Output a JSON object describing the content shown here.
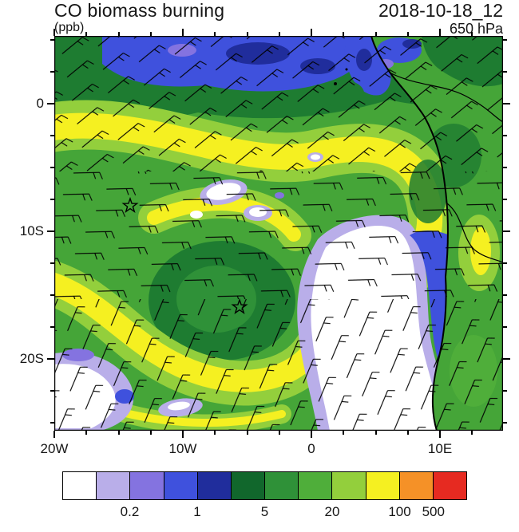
{
  "header": {
    "title": "CO biomass burning",
    "units_label": "(ppb)",
    "datetime": "2018-10-18_12",
    "level": "650 hPa"
  },
  "axes": {
    "y_ticks": [
      {
        "label": "0",
        "pct": 17.2
      },
      {
        "label": "10S",
        "pct": 49.5
      },
      {
        "label": "20S",
        "pct": 81.8
      }
    ],
    "y_minor_pct": [
      1.05,
      9.13,
      25.28,
      33.35,
      41.43,
      57.58,
      65.65,
      73.73,
      89.88,
      97.95
    ],
    "x_ticks": [
      {
        "label": "20W",
        "pct": 0
      },
      {
        "label": "10W",
        "pct": 28.65
      },
      {
        "label": "0",
        "pct": 57.3
      },
      {
        "label": "10E",
        "pct": 85.95
      }
    ],
    "x_minor_pct": [
      7.16,
      14.33,
      21.49,
      35.81,
      42.98,
      50.14,
      64.46,
      71.63,
      78.79,
      93.11
    ]
  },
  "colorbar": {
    "colors": [
      "#ffffff",
      "#b9aee9",
      "#8473e0",
      "#3f51dd",
      "#202d9c",
      "#11672c",
      "#2f9138",
      "#4fae3a",
      "#93cf3c",
      "#f5f021",
      "#f59127",
      "#e62a21"
    ],
    "labels": [
      {
        "text": "0.2",
        "boundary": 2
      },
      {
        "text": "1",
        "boundary": 4
      },
      {
        "text": "5",
        "boundary": 6
      },
      {
        "text": "20",
        "boundary": 8
      },
      {
        "text": "100",
        "boundary": 10
      },
      {
        "text": "500",
        "boundary": 11
      }
    ]
  },
  "chart_data": {
    "type": "heatmap",
    "subtype": "filled-contour map with wind barbs, coastline and country borders",
    "title": "CO biomass burning",
    "units": "ppb",
    "level": "650 hPa",
    "valid_time": "2018-10-18_12",
    "lon_range_deg": [
      -20,
      15
    ],
    "lat_range_deg": [
      -25.7,
      5.3
    ],
    "x_tick_labels": [
      "20W",
      "10W",
      "0",
      "10E"
    ],
    "y_tick_labels": [
      "0",
      "10S",
      "20S"
    ],
    "labeled_contour_levels_ppb": [
      0.2,
      1,
      5,
      20,
      100,
      500
    ],
    "estimated_contour_levels_ppb": [
      0.1,
      0.2,
      0.5,
      1,
      2,
      5,
      10,
      20,
      50,
      100,
      500
    ],
    "palette": [
      "#ffffff",
      "#b9aee9",
      "#8473e0",
      "#3f51dd",
      "#202d9c",
      "#11672c",
      "#2f9138",
      "#4fae3a",
      "#93cf3c",
      "#f5f021",
      "#f59127",
      "#e62a21"
    ],
    "features": [
      {
        "name": "high-CO spiral plume",
        "value_ppb": "100-500",
        "desc": "yellow band of biomass-burning CO spiraling anticyclonically from the African coast westward over the South Atlantic between roughly 2S and 22S"
      },
      {
        "name": "gyre core",
        "value_ppb": "20-100",
        "desc": "green vortex center near 6W, 16S marked with a star"
      },
      {
        "name": "clean-air slot",
        "value_ppb": "<0.2-2",
        "desc": "white wedge of very low CO from about 12S, 2W southeastward to the coast near 22S, rimmed by purple and blue (0.2-5 ppb)"
      },
      {
        "name": "northern low-CO band",
        "value_ppb": "0.2-5",
        "desc": "blue and dark-blue patches along the equatorward (northern) edge of the domain"
      },
      {
        "name": "southwest low-CO patch",
        "value_ppb": "<1",
        "desc": "small white/blue patch in the bottom-left corner near 19W, 24S"
      }
    ],
    "markers": [
      {
        "symbol": "star",
        "lon_deg": -14,
        "lat_deg": -8
      },
      {
        "symbol": "star",
        "lon_deg": -6,
        "lat_deg": -16
      }
    ],
    "overlays": [
      "650 hPa wind barbs",
      "African coastline",
      "country border / river lines"
    ]
  }
}
